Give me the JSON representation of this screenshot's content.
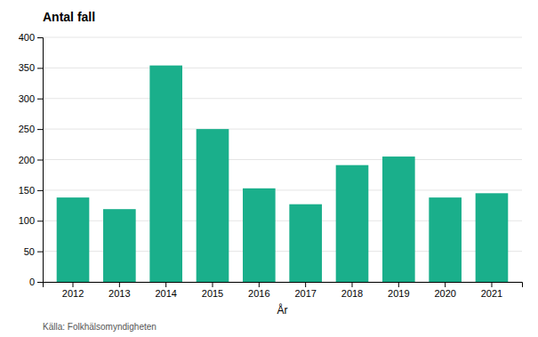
{
  "chart_data": {
    "type": "bar",
    "title": "Antal fall",
    "categories": [
      "2012",
      "2013",
      "2014",
      "2015",
      "2016",
      "2017",
      "2018",
      "2019",
      "2020",
      "2021"
    ],
    "values": [
      138,
      119,
      354,
      250,
      153,
      127,
      191,
      205,
      138,
      145
    ],
    "color": "#1aaf8b",
    "x_label": "År",
    "ylim": [
      0,
      400
    ],
    "yticks": [
      0,
      50,
      100,
      150,
      200,
      250,
      300,
      350,
      400
    ],
    "grid": true,
    "annotations": [
      "Källa: Folkhälsomyndigheten"
    ]
  }
}
